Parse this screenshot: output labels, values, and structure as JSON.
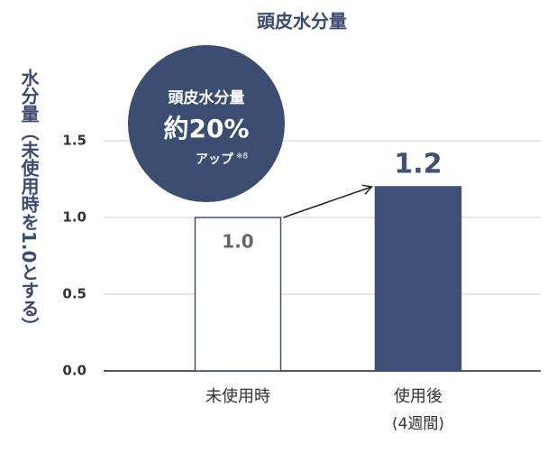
{
  "chart_data": {
    "type": "bar",
    "title": "頭皮水分量",
    "ylabel": "水分量（未使用時を1.0とする）",
    "categories": [
      "未使用時",
      "使用後"
    ],
    "category_notes": [
      null,
      "(4週間)"
    ],
    "values": [
      1.0,
      1.2
    ],
    "value_labels": [
      "1.0",
      "1.2"
    ],
    "colors": [
      "#ffffff",
      "#3f5176"
    ],
    "edgecolor": "#3f5176",
    "ylim": [
      0,
      1.5
    ],
    "yticks": [
      {
        "value": 0,
        "label": "0.0"
      },
      0.5,
      {
        "value": 1,
        "label": "1.0"
      },
      1.5
    ],
    "grid": true,
    "badge": {
      "line1": "頭皮水分量",
      "line2": "約20%",
      "line3": "アップ",
      "note": "※8"
    }
  }
}
